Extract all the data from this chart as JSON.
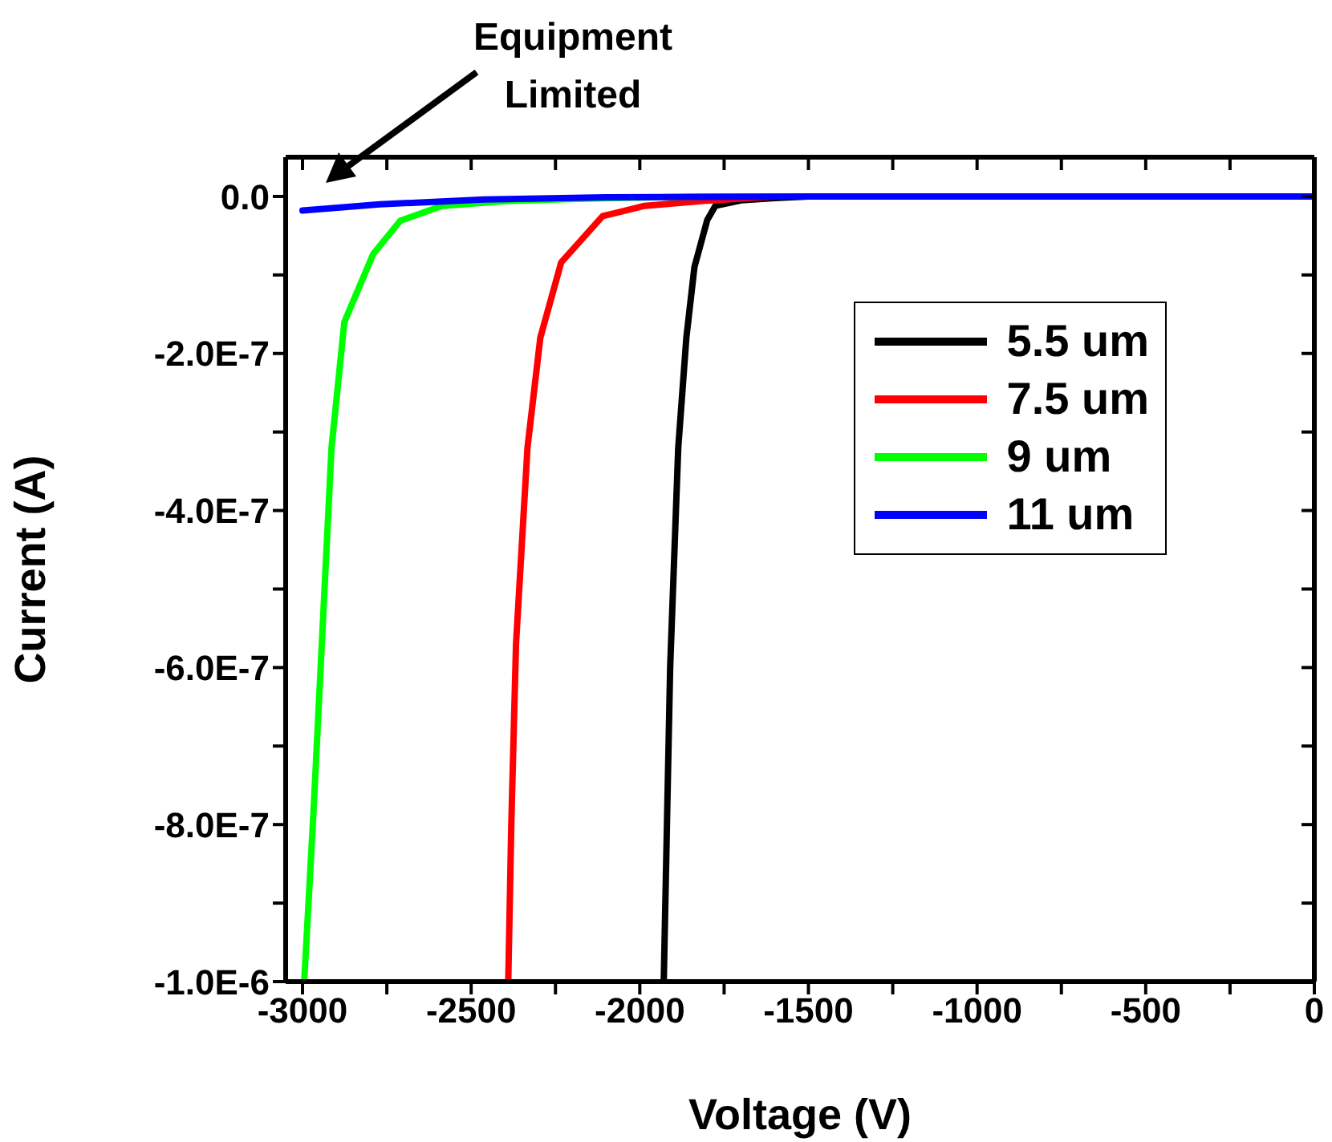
{
  "chart_data": {
    "type": "line",
    "xlabel": "Voltage (V)",
    "ylabel": "Current (A)",
    "xlim": [
      -3050,
      0
    ],
    "ylim": [
      -1e-06,
      5e-08
    ],
    "xticks": [
      -3000,
      {
        "value": -2750,
        "label": null
      },
      -2500,
      {
        "value": -2250,
        "label": null
      },
      -2000,
      {
        "value": -1750,
        "label": null
      },
      -1500,
      {
        "value": -1250,
        "label": null
      },
      -1000,
      {
        "value": -750,
        "label": null
      },
      -500,
      {
        "value": -250,
        "label": null
      },
      0
    ],
    "yticks": [
      {
        "value": 0,
        "label": "0.0"
      },
      {
        "value": -1e-07,
        "label": null
      },
      {
        "value": -2e-07,
        "label": "-2.0E-7"
      },
      {
        "value": -3e-07,
        "label": null
      },
      {
        "value": -4e-07,
        "label": "-4.0E-7"
      },
      {
        "value": -5e-07,
        "label": null
      },
      {
        "value": -6e-07,
        "label": "-6.0E-7"
      },
      {
        "value": -7e-07,
        "label": null
      },
      {
        "value": -8e-07,
        "label": "-8.0E-7"
      },
      {
        "value": -9e-07,
        "label": null
      },
      {
        "value": -1e-06,
        "label": "-1.0E-6"
      }
    ],
    "grid": false,
    "legend": "top right",
    "marker": "none",
    "line_style": "solid",
    "annotations": [
      "Equipment Limited"
    ],
    "series": [
      {
        "name": "5.5 um",
        "color": "#000000",
        "x": [
          -1929,
          -1910,
          -1886,
          -1862,
          -1838,
          -1800,
          -1776,
          -1700,
          -1600,
          -1500,
          0
        ],
        "values": [
          -1e-06,
          -6e-07,
          -3.2e-07,
          -1.8e-07,
          -9e-08,
          -3e-08,
          -1.2e-08,
          -5e-09,
          -2e-09,
          0,
          0
        ]
      },
      {
        "name": "7.5 um",
        "color": "#ff0000",
        "x": [
          -2390,
          -2381,
          -2367,
          -2333,
          -2295,
          -2233,
          -2110,
          -1986,
          -1819,
          -1600,
          0
        ],
        "values": [
          -1e-06,
          -8e-07,
          -5.7e-07,
          -3.2e-07,
          -1.8e-07,
          -8.4e-08,
          -2.5e-08,
          -1.2e-08,
          -6e-09,
          0,
          0
        ]
      },
      {
        "name": "9 um",
        "color": "#00ff00",
        "x": [
          -2995,
          -2967,
          -2914,
          -2876,
          -2790,
          -2710,
          -2586,
          -2400,
          -2190,
          -1800,
          0
        ],
        "values": [
          -1e-06,
          -7.8e-07,
          -3.2e-07,
          -1.6e-07,
          -7.3e-08,
          -3.1e-08,
          -1.2e-08,
          -6e-09,
          -3e-09,
          0,
          0
        ]
      },
      {
        "name": "11 um",
        "color": "#0000ff",
        "x": [
          -3000,
          -2771,
          -2462,
          -2100,
          -1500,
          0
        ],
        "values": [
          -1.8e-08,
          -1e-08,
          -4e-09,
          -1e-09,
          0,
          0
        ]
      }
    ]
  }
}
